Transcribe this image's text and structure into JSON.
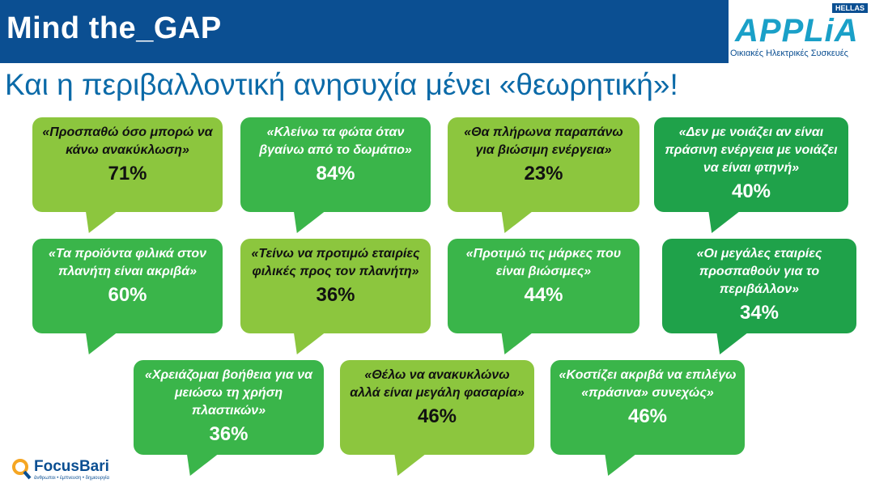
{
  "header": {
    "title": "Mind the_GAP"
  },
  "logo": {
    "badge": "HELLAS",
    "name": "APPLiA",
    "subtitle": "Οικιακές Ηλεκτρικές Συσκευές"
  },
  "title": "Και η περιβαλλοντική ανησυχία μένει «θεωρητική»!",
  "bubbles": [
    {
      "quote": "«Προσπαθώ όσο μπορώ  να κάνω ανακύκλωση»",
      "value": "71%"
    },
    {
      "quote": "«Κλείνω τα φώτα όταν βγαίνω από το δωμάτιο»",
      "value": "84%"
    },
    {
      "quote": "«Θα πλήρωνα παραπάνω για βιώσιμη ενέργεια»",
      "value": "23%"
    },
    {
      "quote": "«Δεν με νοιάζει αν είναι πράσινη ενέργεια με νοιάζει να είναι φτηνή»",
      "value": "40%"
    },
    {
      "quote": "«Τα προϊόντα φιλικά στον πλανήτη είναι ακριβά»",
      "value": "60%"
    },
    {
      "quote": "«Τείνω να προτιμώ εταιρίες φιλικές προς τον πλανήτη»",
      "value": "36%"
    },
    {
      "quote": "«Προτιμώ τις μάρκες που είναι βιώσιμες»",
      "value": "44%"
    },
    {
      "quote": "«Οι μεγάλες εταιρίες προσπαθούν για το περιβάλλον»",
      "value": "34%"
    },
    {
      "quote": "«Χρειάζομαι βοήθεια για να μειώσω τη χρήση πλαστικών»",
      "value": "36%"
    },
    {
      "quote": "«Θέλω να ανακυκλώνω αλλά είναι μεγάλη φασαρία»",
      "value": "46%"
    },
    {
      "quote": "«Κοστίζει ακριβά να επιλέγω «πράσινα» συνεχώς»",
      "value": "46%"
    }
  ],
  "footer": {
    "name": "FocusBari",
    "tagline": "άνθρωποι • έμπνευση • δημιουργία"
  }
}
